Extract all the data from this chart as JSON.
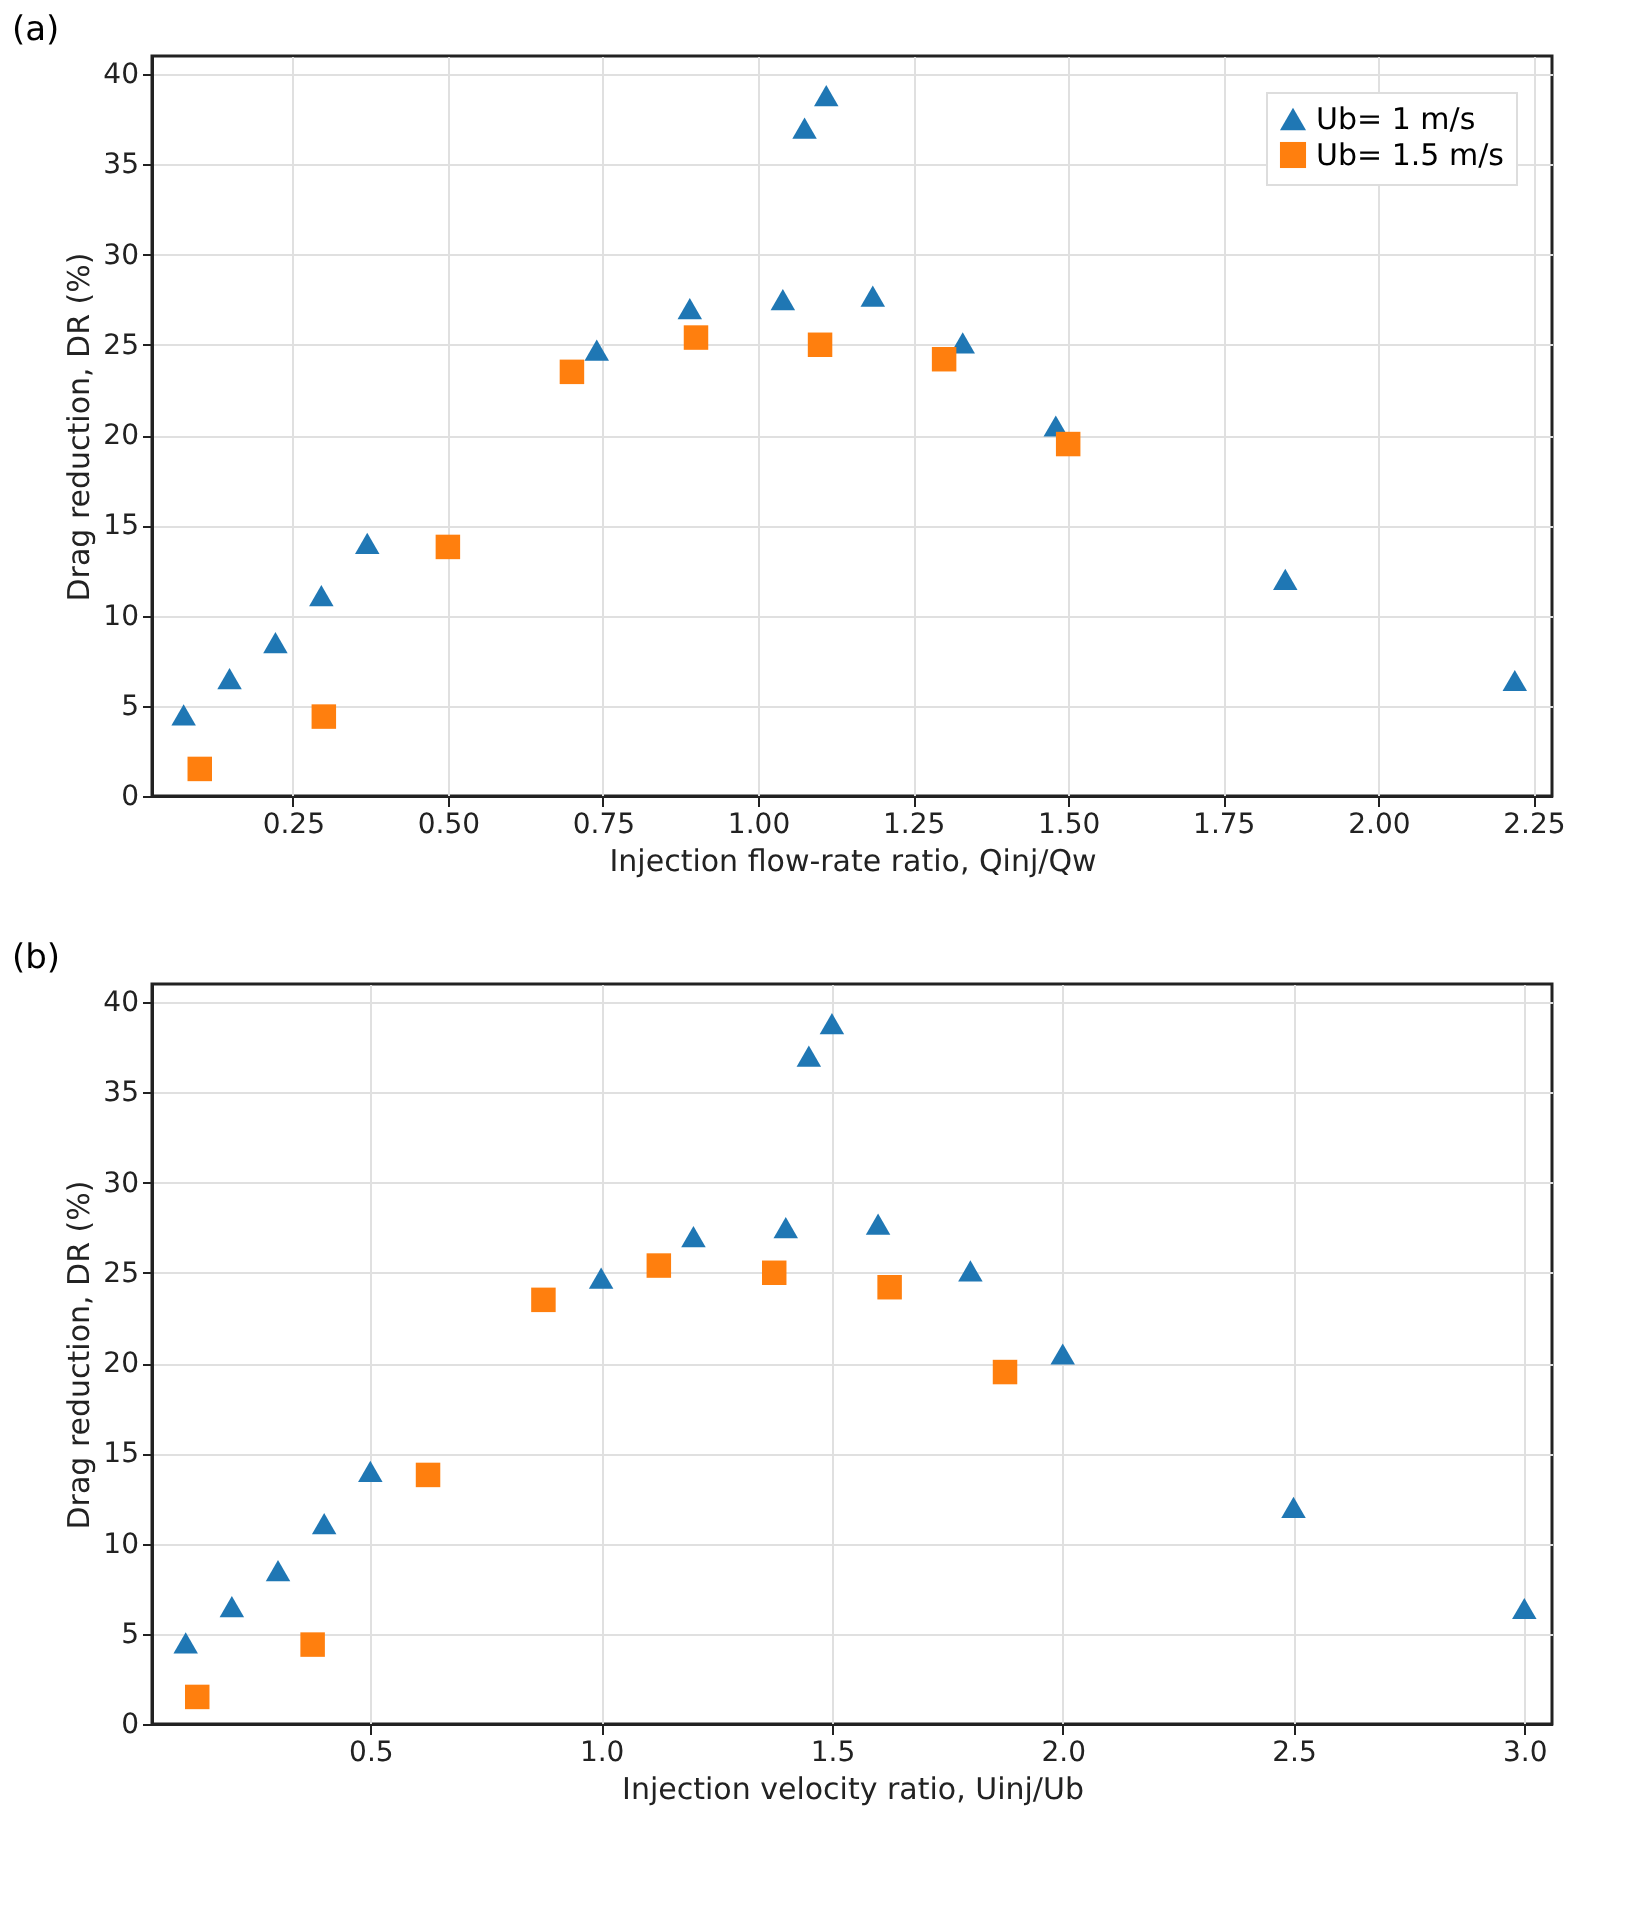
{
  "chart_data": [
    {
      "type": "scatter",
      "title": "(a)",
      "xlabel": "Injection flow-rate ratio, Qinj/Qw",
      "ylabel": "Drag reduction, DR (%)",
      "xlim": [
        0.023,
        2.28
      ],
      "ylim": [
        0,
        41
      ],
      "xticks": [
        0.25,
        {
          "value": 0.5,
          "label": "0.50"
        },
        0.75,
        {
          "value": 1.0,
          "label": "1.00"
        },
        1.25,
        {
          "value": 1.5,
          "label": "1.50"
        },
        1.75,
        {
          "value": 2.0,
          "label": "2.00"
        },
        2.25
      ],
      "yticks": [
        0,
        5,
        10,
        15,
        20,
        25,
        30,
        35,
        40
      ],
      "grid": true,
      "legend": "top right",
      "series": [
        {
          "name": "Ub= 1 m/s",
          "color": "#1f77b4",
          "marker": "triangle",
          "x": [
            0.074,
            0.148,
            0.222,
            0.296,
            0.37,
            0.74,
            0.89,
            1.04,
            1.075,
            1.11,
            1.185,
            1.33,
            1.48,
            1.85,
            2.22
          ],
          "values": [
            4.5,
            6.5,
            8.5,
            11.1,
            14,
            24.7,
            27,
            27.5,
            37,
            38.8,
            27.7,
            25.1,
            20.5,
            12,
            6.4
          ]
        },
        {
          "name": "Ub= 1.5 m/s",
          "color": "#ff7f0e",
          "marker": "square",
          "x": [
            0.1,
            0.3,
            0.5,
            0.7,
            0.9,
            1.1,
            1.3,
            1.5
          ],
          "values": [
            1.5,
            4.4,
            13.8,
            23.5,
            25.4,
            25,
            24.2,
            19.5
          ]
        }
      ]
    },
    {
      "type": "scatter",
      "title": "(b)",
      "xlabel": "Injection velocity ratio, Uinj/Ub",
      "ylabel": "Drag reduction, DR (%)",
      "xlim": [
        0.027,
        3.06
      ],
      "ylim": [
        0,
        41
      ],
      "xticks": [
        0.5,
        {
          "value": 1.0,
          "label": "1.0"
        },
        1.5,
        {
          "value": 2.0,
          "label": "2.0"
        },
        2.5,
        {
          "value": 3.0,
          "label": "3.0"
        }
      ],
      "yticks": [
        0,
        5,
        10,
        15,
        20,
        25,
        30,
        35,
        40
      ],
      "grid": true,
      "legend": "top right",
      "series": [
        {
          "name": "Ub= 1 m/s",
          "color": "#1f77b4",
          "marker": "triangle",
          "x": [
            0.1,
            0.2,
            0.3,
            0.4,
            0.5,
            1.0,
            1.2,
            1.4,
            1.45,
            1.5,
            1.6,
            1.8,
            2.0,
            2.5,
            3.0
          ],
          "values": [
            4.5,
            6.5,
            8.5,
            11.1,
            14,
            24.7,
            27,
            27.5,
            37,
            38.8,
            27.7,
            25.1,
            20.5,
            12,
            6.4
          ]
        },
        {
          "name": "Ub= 1.5 m/s",
          "color": "#ff7f0e",
          "marker": "square",
          "x": [
            0.125,
            0.375,
            0.625,
            0.875,
            1.125,
            1.375,
            1.625,
            1.875
          ],
          "values": [
            1.5,
            4.4,
            13.8,
            23.5,
            25.4,
            25,
            24.2,
            19.5
          ]
        }
      ]
    }
  ]
}
